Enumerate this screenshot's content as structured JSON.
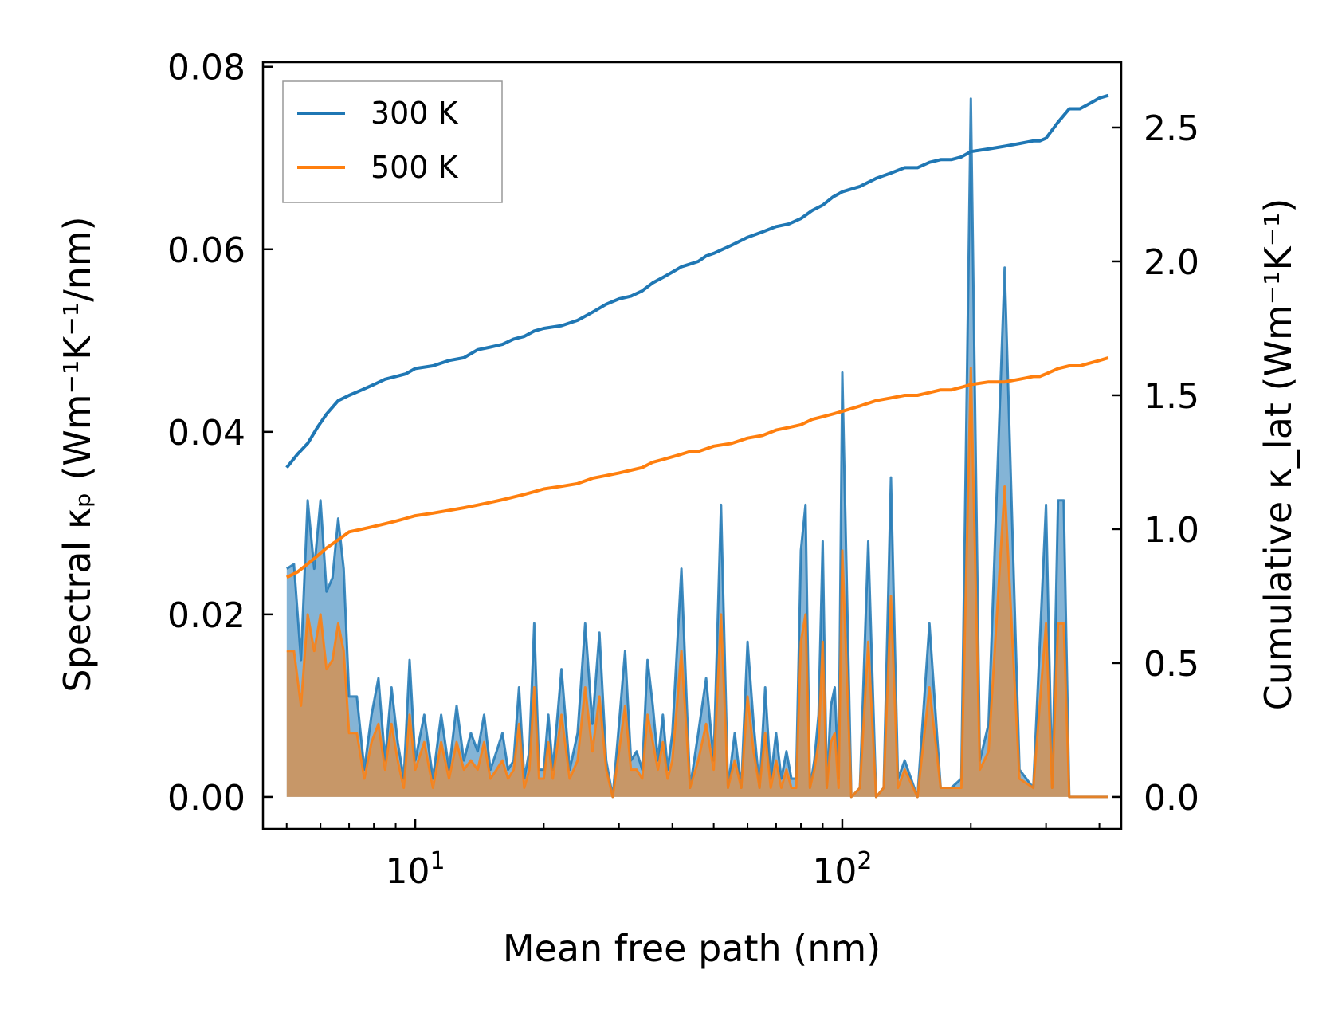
{
  "chart_data": {
    "type": "line",
    "title": "",
    "xlabel": "Mean free path (nm)",
    "ylabel_left": "Spectral κₚ (Wm⁻¹K⁻¹/nm)",
    "ylabel_right": "Cumulative κ_lat (Wm⁻¹K⁻¹)",
    "xscale": "log",
    "xlim": [
      4.4,
      450
    ],
    "ylim_left": [
      -0.0035,
      0.0805
    ],
    "ylim_right": [
      -0.1193,
      2.744
    ],
    "x_ticks": [
      {
        "value": 10,
        "base": "10",
        "exp": "1"
      },
      {
        "value": 100,
        "base": "10",
        "exp": "2"
      }
    ],
    "y_left_ticks": [
      {
        "value": 0.0,
        "label": "0.00"
      },
      {
        "value": 0.02,
        "label": "0.02"
      },
      {
        "value": 0.04,
        "label": "0.04"
      },
      {
        "value": 0.06,
        "label": "0.06"
      },
      {
        "value": 0.08,
        "label": "0.08"
      }
    ],
    "y_right_ticks": [
      {
        "value": 0.0,
        "label": "0.0"
      },
      {
        "value": 0.5,
        "label": "0.5"
      },
      {
        "value": 1.0,
        "label": "1.0"
      },
      {
        "value": 1.5,
        "label": "1.5"
      },
      {
        "value": 2.0,
        "label": "2.0"
      },
      {
        "value": 2.5,
        "label": "2.5"
      }
    ],
    "legend": {
      "position": "top-left",
      "entries": [
        "300 K",
        "500 K"
      ]
    },
    "series_colors": {
      "300 K": "#1f77b4",
      "500 K": "#ff7f0e"
    },
    "cumulative": [
      {
        "name": "300 K",
        "axis": "right",
        "x": [
          5.0,
          5.3,
          5.6,
          5.9,
          6.2,
          6.6,
          7.0,
          7.5,
          8.0,
          8.5,
          9.0,
          9.5,
          10,
          11,
          12,
          13,
          14,
          15,
          16,
          17,
          18,
          19,
          20,
          22,
          24,
          26,
          28,
          30,
          32,
          34,
          36,
          38,
          40,
          42,
          44,
          46,
          48,
          50,
          55,
          60,
          65,
          70,
          75,
          80,
          85,
          90,
          95,
          100,
          110,
          120,
          130,
          140,
          150,
          160,
          170,
          180,
          190,
          200,
          220,
          240,
          260,
          280,
          290,
          300,
          320,
          340,
          360,
          380,
          400,
          420
        ],
        "values": [
          1.23,
          1.28,
          1.32,
          1.38,
          1.43,
          1.48,
          1.5,
          1.52,
          1.54,
          1.56,
          1.57,
          1.58,
          1.6,
          1.61,
          1.63,
          1.64,
          1.67,
          1.68,
          1.69,
          1.71,
          1.72,
          1.74,
          1.75,
          1.76,
          1.78,
          1.81,
          1.84,
          1.86,
          1.87,
          1.89,
          1.92,
          1.94,
          1.96,
          1.98,
          1.99,
          2.0,
          2.02,
          2.03,
          2.06,
          2.09,
          2.11,
          2.13,
          2.14,
          2.16,
          2.19,
          2.21,
          2.24,
          2.26,
          2.28,
          2.31,
          2.33,
          2.35,
          2.35,
          2.37,
          2.38,
          2.38,
          2.39,
          2.41,
          2.42,
          2.43,
          2.44,
          2.45,
          2.45,
          2.46,
          2.52,
          2.57,
          2.57,
          2.59,
          2.61,
          2.62
        ]
      },
      {
        "name": "500 K",
        "axis": "right",
        "x": [
          5.0,
          5.3,
          5.6,
          5.9,
          6.2,
          6.6,
          7.0,
          7.5,
          8.0,
          8.5,
          9.0,
          9.5,
          10,
          11,
          12,
          13,
          14,
          15,
          16,
          17,
          18,
          19,
          20,
          22,
          24,
          26,
          28,
          30,
          32,
          34,
          36,
          38,
          40,
          42,
          44,
          46,
          48,
          50,
          55,
          60,
          65,
          70,
          75,
          80,
          85,
          90,
          95,
          100,
          110,
          120,
          130,
          140,
          150,
          160,
          170,
          180,
          190,
          200,
          220,
          240,
          260,
          280,
          290,
          300,
          320,
          340,
          360,
          380,
          400,
          420
        ],
        "values": [
          0.82,
          0.84,
          0.87,
          0.9,
          0.93,
          0.96,
          0.99,
          1.0,
          1.01,
          1.02,
          1.03,
          1.04,
          1.05,
          1.06,
          1.07,
          1.08,
          1.09,
          1.1,
          1.11,
          1.12,
          1.13,
          1.14,
          1.15,
          1.16,
          1.17,
          1.19,
          1.2,
          1.21,
          1.22,
          1.23,
          1.25,
          1.26,
          1.27,
          1.28,
          1.29,
          1.29,
          1.3,
          1.31,
          1.32,
          1.34,
          1.35,
          1.37,
          1.38,
          1.39,
          1.41,
          1.42,
          1.43,
          1.44,
          1.46,
          1.48,
          1.49,
          1.5,
          1.5,
          1.51,
          1.52,
          1.52,
          1.53,
          1.54,
          1.55,
          1.55,
          1.56,
          1.57,
          1.57,
          1.58,
          1.6,
          1.61,
          1.61,
          1.62,
          1.63,
          1.64
        ]
      }
    ],
    "spectral": [
      {
        "name": "300 K",
        "axis": "left",
        "x": [
          5.0,
          5.2,
          5.4,
          5.6,
          5.8,
          6.0,
          6.2,
          6.4,
          6.6,
          6.8,
          7.0,
          7.3,
          7.6,
          7.9,
          8.2,
          8.5,
          8.8,
          9.1,
          9.4,
          9.7,
          10.0,
          10.5,
          11.0,
          11.5,
          12.0,
          12.5,
          13.0,
          13.5,
          14.0,
          14.5,
          15.0,
          15.5,
          16.0,
          16.5,
          17.0,
          17.5,
          18.0,
          18.5,
          19.0,
          19.5,
          20.0,
          20.5,
          21.0,
          22.0,
          23.0,
          24.0,
          25.0,
          26.0,
          27.0,
          28.0,
          29.0,
          30.0,
          31.0,
          32.0,
          33.0,
          34.0,
          35.0,
          36.0,
          37.0,
          38.0,
          39.0,
          40.0,
          42.0,
          44.0,
          46.0,
          48.0,
          50.0,
          52.0,
          54.0,
          56.0,
          58.0,
          60.0,
          62.0,
          64.0,
          66.0,
          68.0,
          70.0,
          72.0,
          74.0,
          76.0,
          78.0,
          80.0,
          82.0,
          84.0,
          86.0,
          88.0,
          90.0,
          92.0,
          94.0,
          96.0,
          98.0,
          100.0,
          105.0,
          110.0,
          115.0,
          120.0,
          125.0,
          130.0,
          135.0,
          140.0,
          150.0,
          160.0,
          170.0,
          180.0,
          190.0,
          200.0,
          210.0,
          220.0,
          240.0,
          260.0,
          280.0,
          300.0,
          310.0,
          320.0,
          330.0,
          340.0,
          360.0,
          380.0,
          400.0,
          420.0
        ],
        "values": [
          0.025,
          0.0255,
          0.015,
          0.0325,
          0.025,
          0.0325,
          0.0225,
          0.024,
          0.0305,
          0.025,
          0.011,
          0.011,
          0.003,
          0.009,
          0.013,
          0.004,
          0.012,
          0.006,
          0.002,
          0.015,
          0.004,
          0.009,
          0.002,
          0.009,
          0.003,
          0.01,
          0.004,
          0.007,
          0.005,
          0.009,
          0.003,
          0.005,
          0.007,
          0.003,
          0.004,
          0.012,
          0.002,
          0.005,
          0.019,
          0.003,
          0.003,
          0.009,
          0.003,
          0.014,
          0.003,
          0.007,
          0.019,
          0.008,
          0.018,
          0.004,
          0.0,
          0.008,
          0.016,
          0.004,
          0.005,
          0.003,
          0.015,
          0.01,
          0.004,
          0.009,
          0.003,
          0.007,
          0.025,
          0.001,
          0.007,
          0.013,
          0.004,
          0.032,
          0.001,
          0.007,
          0.001,
          0.017,
          0.008,
          0.001,
          0.012,
          0.002,
          0.007,
          0.002,
          0.005,
          0.002,
          0.002,
          0.027,
          0.032,
          0.001,
          0.004,
          0.009,
          0.028,
          0.001,
          0.01,
          0.012,
          0.002,
          0.0465,
          0.0,
          0.001,
          0.028,
          0.0,
          0.001,
          0.035,
          0.002,
          0.004,
          0.0,
          0.019,
          0.001,
          0.001,
          0.002,
          0.0765,
          0.004,
          0.008,
          0.058,
          0.003,
          0.001,
          0.032,
          0.001,
          0.0325,
          0.0325,
          0.0,
          0.0,
          0.0,
          0.0,
          0.0
        ]
      },
      {
        "name": "500 K",
        "axis": "left",
        "x": [
          5.0,
          5.2,
          5.4,
          5.6,
          5.8,
          6.0,
          6.2,
          6.4,
          6.6,
          6.8,
          7.0,
          7.3,
          7.6,
          7.9,
          8.2,
          8.5,
          8.8,
          9.1,
          9.4,
          9.7,
          10.0,
          10.5,
          11.0,
          11.5,
          12.0,
          12.5,
          13.0,
          13.5,
          14.0,
          14.5,
          15.0,
          15.5,
          16.0,
          16.5,
          17.0,
          17.5,
          18.0,
          18.5,
          19.0,
          19.5,
          20.0,
          20.5,
          21.0,
          22.0,
          23.0,
          24.0,
          25.0,
          26.0,
          27.0,
          28.0,
          29.0,
          30.0,
          31.0,
          32.0,
          33.0,
          34.0,
          35.0,
          36.0,
          37.0,
          38.0,
          39.0,
          40.0,
          42.0,
          44.0,
          46.0,
          48.0,
          50.0,
          52.0,
          54.0,
          56.0,
          58.0,
          60.0,
          62.0,
          64.0,
          66.0,
          68.0,
          70.0,
          72.0,
          74.0,
          76.0,
          78.0,
          80.0,
          82.0,
          84.0,
          86.0,
          88.0,
          90.0,
          92.0,
          94.0,
          96.0,
          98.0,
          100.0,
          105.0,
          110.0,
          115.0,
          120.0,
          125.0,
          130.0,
          135.0,
          140.0,
          150.0,
          160.0,
          170.0,
          180.0,
          190.0,
          200.0,
          210.0,
          220.0,
          240.0,
          260.0,
          280.0,
          300.0,
          310.0,
          320.0,
          330.0,
          340.0,
          360.0,
          380.0,
          400.0,
          420.0
        ],
        "values": [
          0.016,
          0.016,
          0.01,
          0.02,
          0.016,
          0.02,
          0.014,
          0.015,
          0.019,
          0.016,
          0.007,
          0.007,
          0.002,
          0.006,
          0.008,
          0.003,
          0.008,
          0.004,
          0.001,
          0.009,
          0.003,
          0.006,
          0.001,
          0.006,
          0.002,
          0.006,
          0.003,
          0.004,
          0.003,
          0.006,
          0.002,
          0.003,
          0.004,
          0.002,
          0.003,
          0.008,
          0.001,
          0.003,
          0.012,
          0.002,
          0.002,
          0.006,
          0.002,
          0.009,
          0.002,
          0.004,
          0.012,
          0.005,
          0.011,
          0.003,
          0.0,
          0.005,
          0.01,
          0.003,
          0.003,
          0.002,
          0.009,
          0.006,
          0.003,
          0.006,
          0.002,
          0.004,
          0.016,
          0.001,
          0.004,
          0.008,
          0.003,
          0.02,
          0.001,
          0.004,
          0.001,
          0.011,
          0.005,
          0.001,
          0.007,
          0.001,
          0.004,
          0.001,
          0.003,
          0.001,
          0.001,
          0.017,
          0.02,
          0.001,
          0.003,
          0.006,
          0.017,
          0.001,
          0.006,
          0.007,
          0.001,
          0.027,
          0.0,
          0.001,
          0.017,
          0.0,
          0.001,
          0.022,
          0.001,
          0.003,
          0.0,
          0.012,
          0.001,
          0.001,
          0.001,
          0.047,
          0.003,
          0.005,
          0.034,
          0.002,
          0.001,
          0.019,
          0.001,
          0.019,
          0.019,
          0.0,
          0.0,
          0.0,
          0.0,
          0.0
        ]
      }
    ]
  }
}
